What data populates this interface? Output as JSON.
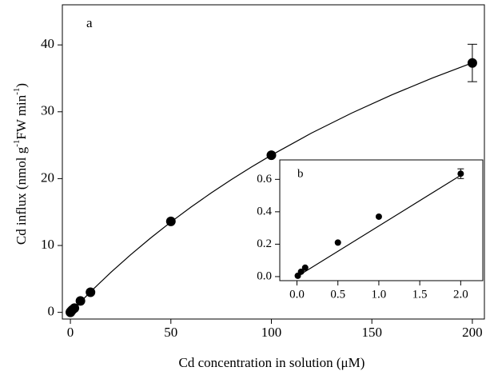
{
  "chart_data": [
    {
      "type": "scatter",
      "panel_label": "a",
      "xlabel": "Cd concentration in solution (μM)",
      "ylabel": [
        "Cd influx (nmol g",
        "-1",
        "FW min",
        "-1",
        ")"
      ],
      "xlim": [
        -4,
        206
      ],
      "ylim": [
        -1,
        46
      ],
      "xticks": [
        0,
        50,
        100,
        150,
        200
      ],
      "yticks": [
        0,
        10,
        20,
        30,
        40
      ],
      "color": "#000000",
      "series": [
        {
          "type": "scatter",
          "x": [
            0.01,
            0.05,
            0.1,
            0.5,
            1,
            2,
            5,
            10,
            50,
            100,
            200
          ],
          "values": [
            0.005,
            0.03,
            0.055,
            0.21,
            0.37,
            0.63,
            1.7,
            3.0,
            13.6,
            23.5,
            37.3
          ],
          "errors": [
            null,
            null,
            null,
            null,
            null,
            null,
            null,
            null,
            null,
            null,
            2.8
          ]
        },
        {
          "type": "line",
          "x": [
            0,
            10,
            20,
            30,
            40,
            50,
            60,
            70,
            80,
            90,
            100,
            120,
            140,
            160,
            180,
            200
          ],
          "values": [
            0,
            3.07,
            5.94,
            8.62,
            11.14,
            13.51,
            15.74,
            17.85,
            19.84,
            21.72,
            23.51,
            26.82,
            29.81,
            32.54,
            35.03,
            37.32
          ]
        }
      ]
    },
    {
      "type": "scatter",
      "panel_label": "b",
      "xlim": [
        -0.21,
        2.27
      ],
      "ylim": [
        -0.025,
        0.72
      ],
      "xticks": [
        {
          "value": 0,
          "label": "0.0"
        },
        {
          "value": 0.5,
          "label": "0.5"
        },
        {
          "value": 1,
          "label": "1.0"
        },
        {
          "value": 1.5,
          "label": "1.5"
        },
        {
          "value": 2,
          "label": "2.0"
        }
      ],
      "yticks": [
        {
          "value": 0,
          "label": "0.0"
        },
        {
          "value": 0.2,
          "label": "0.2"
        },
        {
          "value": 0.4,
          "label": "0.4"
        },
        {
          "value": 0.6,
          "label": "0.6"
        }
      ],
      "color": "#000000",
      "series": [
        {
          "type": "scatter",
          "x": [
            0.01,
            0.05,
            0.1,
            0.5,
            1,
            2
          ],
          "values": [
            0.005,
            0.03,
            0.055,
            0.21,
            0.37,
            0.635
          ],
          "errors": [
            null,
            null,
            null,
            null,
            null,
            0.03
          ]
        },
        {
          "type": "line",
          "x": [
            0,
            2
          ],
          "values": [
            0,
            0.625
          ]
        }
      ]
    }
  ]
}
